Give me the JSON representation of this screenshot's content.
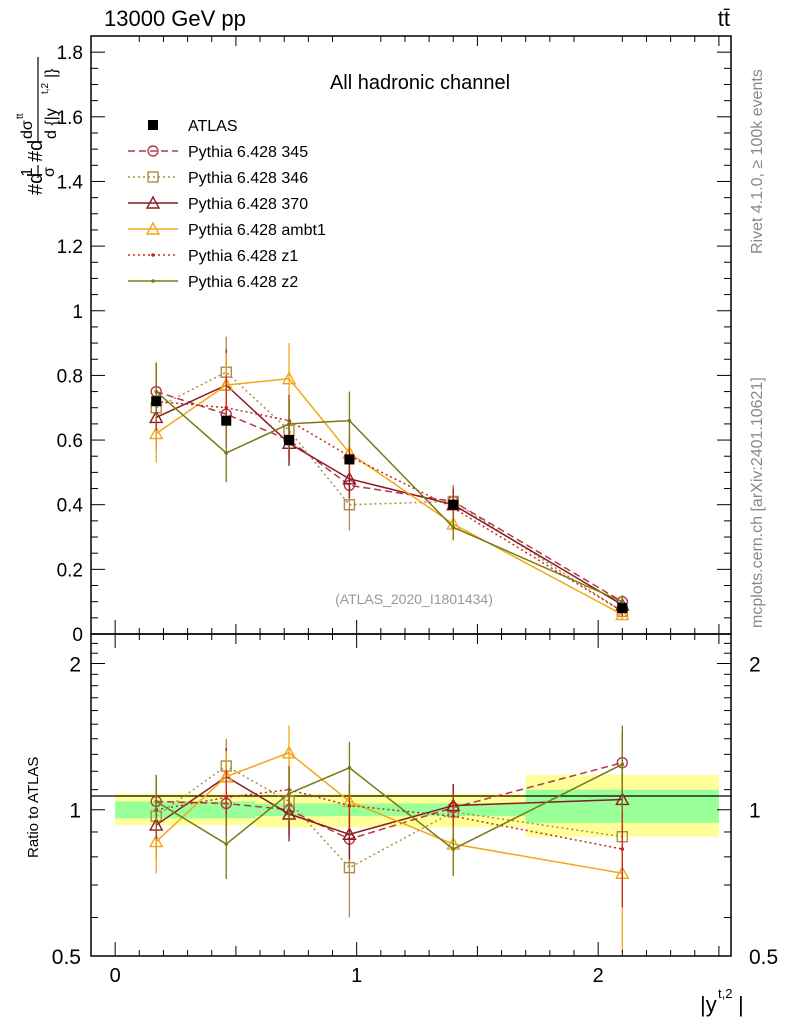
{
  "header": {
    "energy_label": "13000 GeV pp",
    "process_label": "tt̄"
  },
  "side_labels": {
    "rivet": "Rivet 4.1.0, ≥ 100k events",
    "mcplots": "mcplots.cern.ch [arXiv:2401.10621]"
  },
  "chart_data": [
    {
      "type": "line",
      "panel": "main",
      "title": "All hadronic channel",
      "watermark": "(ATLAS_2020_I1801434)",
      "ylabel": "#d1σ#dd σttd {|yt,2|}",
      "ylabel_parts": {
        "p1": "#d",
        "frac1_num": "1",
        "frac1_den": "σ",
        "p2": "#d",
        "frac2_num": "dσ",
        "frac2_num_sup": "tt",
        "frac2_den": "d {|y",
        "frac2_den_sup": "t,2",
        "frac2_den_end": "|}"
      },
      "xlim": [
        -0.1,
        2.55
      ],
      "ylim": [
        0,
        1.85
      ],
      "yticks": [
        0.2,
        0.4,
        0.6,
        0.8,
        1,
        1.2,
        1.4,
        1.6,
        1.8
      ],
      "ytick_labels": [
        "0.2",
        "0.4",
        "0.6",
        "0.8",
        "1",
        "1.2",
        "1.4",
        "1.6",
        "1.8"
      ],
      "y_zero_label": "0",
      "legend_position": "top-left",
      "data": {
        "name": "ATLAS",
        "x": [
          0.17,
          0.46,
          0.72,
          0.97,
          1.4,
          2.1
        ],
        "y": [
          0.72,
          0.66,
          0.6,
          0.54,
          0.4,
          0.08
        ]
      },
      "series": [
        {
          "name": "Pythia 6.428 345",
          "color": "#b03a48",
          "dash": "7,4",
          "marker": "circle",
          "x": [
            0.17,
            0.46,
            0.72,
            0.97,
            1.4,
            2.1
          ],
          "y": [
            0.75,
            0.68,
            0.6,
            0.46,
            0.41,
            0.1
          ],
          "err": [
            0.09,
            0.1,
            0.07,
            0.05,
            0.05,
            0.015
          ]
        },
        {
          "name": "Pythia 6.428 346",
          "color": "#b08a48",
          "dash": "2,3",
          "marker": "square",
          "x": [
            0.17,
            0.46,
            0.72,
            0.97,
            1.4,
            2.1
          ],
          "y": [
            0.7,
            0.81,
            0.63,
            0.4,
            0.41,
            0.07
          ],
          "err": [
            0.1,
            0.11,
            0.08,
            0.08,
            0.05,
            0.02
          ]
        },
        {
          "name": "Pythia 6.428 370",
          "color": "#8b1a24",
          "dash": "",
          "marker": "triangle",
          "x": [
            0.17,
            0.46,
            0.72,
            0.97,
            1.4,
            2.1
          ],
          "y": [
            0.67,
            0.77,
            0.59,
            0.48,
            0.4,
            0.09
          ],
          "err": [
            0.1,
            0.11,
            0.07,
            0.06,
            0.05,
            0.015
          ]
        },
        {
          "name": "Pythia 6.428 ambt1",
          "color": "#f0a818",
          "dash": "",
          "marker": "triangle",
          "x": [
            0.17,
            0.46,
            0.72,
            0.97,
            1.4,
            2.1
          ],
          "y": [
            0.62,
            0.77,
            0.79,
            0.56,
            0.34,
            0.06
          ],
          "err": [
            0.09,
            0.1,
            0.11,
            0.07,
            0.05,
            0.015
          ]
        },
        {
          "name": "Pythia 6.428 z1",
          "color": "#c82818",
          "dash": "2,3",
          "marker": "dot",
          "x": [
            0.17,
            0.46,
            0.72,
            0.97,
            1.4,
            2.1
          ],
          "y": [
            0.72,
            0.7,
            0.66,
            0.55,
            0.39,
            0.07
          ],
          "err": [
            0.09,
            0.1,
            0.08,
            0.06,
            0.05,
            0.015
          ]
        },
        {
          "name": "Pythia 6.428 z2",
          "color": "#7a7a18",
          "dash": "",
          "marker": "dot",
          "x": [
            0.17,
            0.46,
            0.72,
            0.97,
            1.4,
            2.1
          ],
          "y": [
            0.75,
            0.56,
            0.65,
            0.66,
            0.33,
            0.1
          ],
          "err": [
            0.09,
            0.09,
            0.08,
            0.09,
            0.04,
            0.02
          ]
        }
      ]
    },
    {
      "type": "line",
      "panel": "ratio",
      "ylabel": "Ratio to ATLAS",
      "xlabel": "|yt,2|",
      "xlabel_parts": {
        "base": "|y",
        "sup": "t,2",
        "end": "|"
      },
      "xlim": [
        -0.1,
        2.55
      ],
      "ylim": [
        0.5,
        2.3
      ],
      "yticks_labeled": [
        0.5,
        1,
        2
      ],
      "ytick_labels": [
        "0.5",
        "1",
        "2"
      ],
      "xticks": [
        0,
        1,
        2
      ],
      "xtick_labels": [
        "0",
        "1",
        "2"
      ],
      "bands": [
        {
          "x0": 0,
          "x1": 0.58,
          "inner": [
            0.96,
            1.04
          ],
          "outer": [
            0.93,
            1.08
          ]
        },
        {
          "x0": 0.58,
          "x1": 1.7,
          "inner": [
            0.97,
            1.03
          ],
          "outer": [
            0.92,
            1.08
          ]
        },
        {
          "x0": 1.7,
          "x1": 2.5,
          "inner": [
            0.94,
            1.1
          ],
          "outer": [
            0.88,
            1.18
          ]
        }
      ],
      "series": [
        {
          "name": "Pythia 6.428 345",
          "y": [
            1.04,
            1.03,
            1.0,
            0.87,
            1.01,
            1.25
          ],
          "err": [
            0.14,
            0.15,
            0.12,
            0.1,
            0.12,
            0.2
          ]
        },
        {
          "name": "Pythia 6.428 346",
          "y": [
            0.97,
            1.23,
            1.04,
            0.76,
            0.99,
            0.88
          ],
          "err": [
            0.15,
            0.17,
            0.15,
            0.16,
            0.12,
            0.25
          ]
        },
        {
          "name": "Pythia 6.428 370",
          "y": [
            0.93,
            1.17,
            0.98,
            0.89,
            1.02,
            1.05
          ],
          "err": [
            0.14,
            0.17,
            0.12,
            0.1,
            0.11,
            0.2
          ]
        },
        {
          "name": "Pythia 6.428 ambt1",
          "y": [
            0.86,
            1.17,
            1.31,
            1.04,
            0.85,
            0.74
          ],
          "err": [
            0.12,
            0.15,
            0.18,
            0.12,
            0.11,
            0.25
          ]
        },
        {
          "name": "Pythia 6.428 z1",
          "y": [
            1.0,
            1.06,
            1.1,
            1.02,
            0.97,
            0.83
          ],
          "err": [
            0.13,
            0.15,
            0.13,
            0.11,
            0.11,
            0.2
          ]
        },
        {
          "name": "Pythia 6.428 z2",
          "y": [
            1.04,
            0.85,
            1.08,
            1.22,
            0.83,
            1.24
          ],
          "err": [
            0.13,
            0.13,
            0.13,
            0.16,
            0.1,
            0.25
          ]
        }
      ]
    }
  ]
}
